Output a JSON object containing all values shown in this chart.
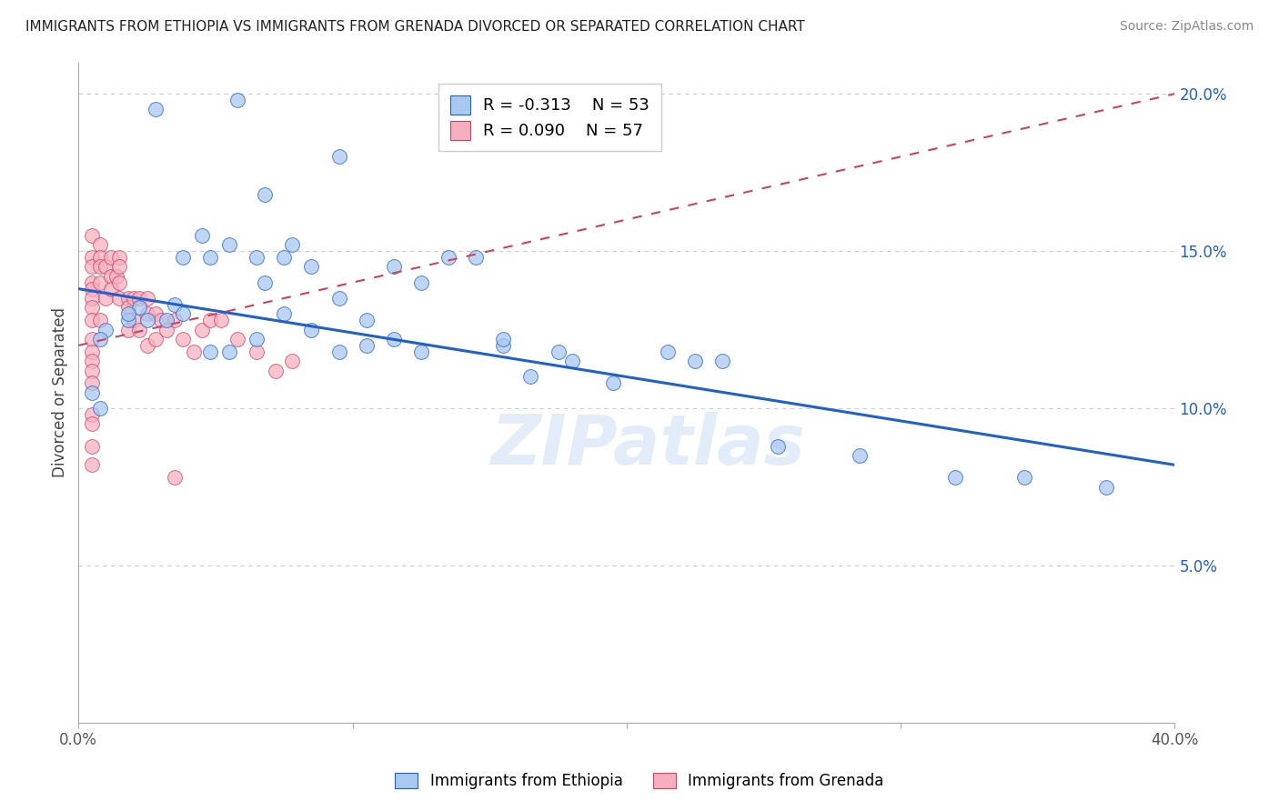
{
  "title": "IMMIGRANTS FROM ETHIOPIA VS IMMIGRANTS FROM GRENADA DIVORCED OR SEPARATED CORRELATION CHART",
  "source": "Source: ZipAtlas.com",
  "ylabel": "Divorced or Separated",
  "x_min": 0.0,
  "x_max": 0.4,
  "y_min": 0.0,
  "y_max": 0.21,
  "x_ticks": [
    0.0,
    0.1,
    0.2,
    0.3,
    0.4
  ],
  "x_tick_labels": [
    "0.0%",
    "",
    "",
    "",
    "40.0%"
  ],
  "y_ticks": [
    0.0,
    0.05,
    0.1,
    0.15,
    0.2
  ],
  "y_tick_labels_left": [
    "",
    "",
    "",
    "",
    ""
  ],
  "y_tick_labels_right": [
    "",
    "5.0%",
    "10.0%",
    "15.0%",
    "20.0%"
  ],
  "legend_ethiopia": "Immigrants from Ethiopia",
  "legend_grenada": "Immigrants from Grenada",
  "R_ethiopia": -0.313,
  "N_ethiopia": 53,
  "R_grenada": 0.09,
  "N_grenada": 57,
  "color_ethiopia": "#a8c8f0",
  "color_grenada": "#f5b0c0",
  "trendline_ethiopia_color": "#2060cc",
  "trendline_grenada_color": "#d04060",
  "watermark": "ZIPatlas",
  "background_color": "#ffffff",
  "ethiopia_x": [
    0.028,
    0.058,
    0.068,
    0.045,
    0.078,
    0.095,
    0.068,
    0.035,
    0.022,
    0.018,
    0.01,
    0.008,
    0.038,
    0.048,
    0.055,
    0.065,
    0.075,
    0.085,
    0.095,
    0.105,
    0.115,
    0.125,
    0.135,
    0.145,
    0.155,
    0.018,
    0.025,
    0.032,
    0.038,
    0.048,
    0.055,
    0.065,
    0.075,
    0.085,
    0.095,
    0.105,
    0.115,
    0.125,
    0.175,
    0.155,
    0.165,
    0.195,
    0.215,
    0.235,
    0.285,
    0.345,
    0.375,
    0.005,
    0.008,
    0.18,
    0.225,
    0.255,
    0.32
  ],
  "ethiopia_y": [
    0.195,
    0.198,
    0.168,
    0.155,
    0.152,
    0.18,
    0.14,
    0.133,
    0.132,
    0.128,
    0.125,
    0.122,
    0.148,
    0.148,
    0.152,
    0.148,
    0.148,
    0.145,
    0.135,
    0.128,
    0.145,
    0.14,
    0.148,
    0.148,
    0.12,
    0.13,
    0.128,
    0.128,
    0.13,
    0.118,
    0.118,
    0.122,
    0.13,
    0.125,
    0.118,
    0.12,
    0.122,
    0.118,
    0.118,
    0.122,
    0.11,
    0.108,
    0.118,
    0.115,
    0.085,
    0.078,
    0.075,
    0.105,
    0.1,
    0.115,
    0.115,
    0.088,
    0.078
  ],
  "grenada_x": [
    0.005,
    0.005,
    0.005,
    0.005,
    0.005,
    0.005,
    0.005,
    0.005,
    0.005,
    0.005,
    0.005,
    0.008,
    0.008,
    0.008,
    0.008,
    0.008,
    0.01,
    0.01,
    0.012,
    0.012,
    0.012,
    0.014,
    0.015,
    0.015,
    0.015,
    0.015,
    0.018,
    0.018,
    0.018,
    0.02,
    0.02,
    0.022,
    0.022,
    0.025,
    0.025,
    0.025,
    0.028,
    0.028,
    0.03,
    0.032,
    0.035,
    0.038,
    0.042,
    0.045,
    0.048,
    0.052,
    0.058,
    0.065,
    0.072,
    0.078,
    0.005,
    0.005,
    0.005,
    0.005,
    0.005,
    0.005,
    0.035
  ],
  "grenada_y": [
    0.155,
    0.148,
    0.145,
    0.14,
    0.138,
    0.135,
    0.132,
    0.128,
    0.122,
    0.118,
    0.115,
    0.152,
    0.148,
    0.145,
    0.14,
    0.128,
    0.145,
    0.135,
    0.148,
    0.142,
    0.138,
    0.142,
    0.148,
    0.145,
    0.14,
    0.135,
    0.135,
    0.132,
    0.125,
    0.135,
    0.128,
    0.135,
    0.125,
    0.135,
    0.13,
    0.12,
    0.13,
    0.122,
    0.128,
    0.125,
    0.128,
    0.122,
    0.118,
    0.125,
    0.128,
    0.128,
    0.122,
    0.118,
    0.112,
    0.115,
    0.112,
    0.108,
    0.098,
    0.095,
    0.088,
    0.082,
    0.078
  ],
  "trendline_eth_start_x": 0.0,
  "trendline_eth_start_y": 0.138,
  "trendline_eth_end_x": 0.4,
  "trendline_eth_end_y": 0.082,
  "trendline_gren_start_x": 0.0,
  "trendline_gren_start_y": 0.12,
  "trendline_gren_end_x": 0.4,
  "trendline_gren_end_y": 0.2
}
